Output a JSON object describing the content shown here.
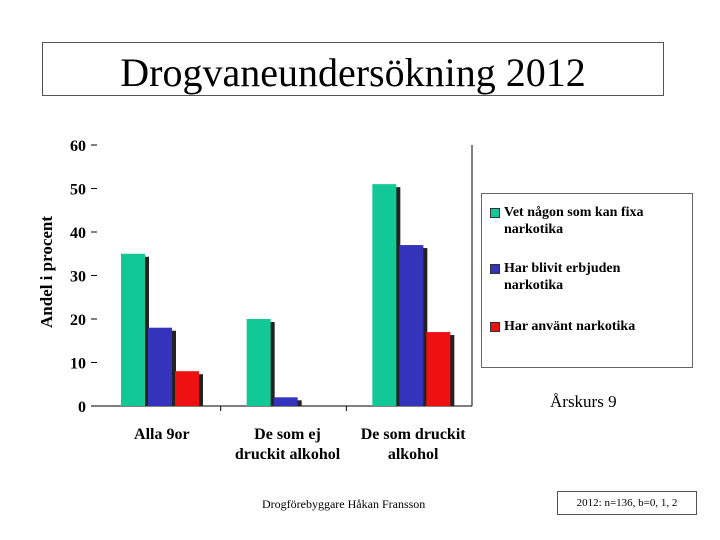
{
  "slide": {
    "title": "Drogvaneundersökning 2012",
    "footer_left": "Drogförebyggare Håkan Fransson",
    "footer_right": "2012: n=136, b=0, 1, 2",
    "grade_label": "Årskurs 9"
  },
  "chart_data": {
    "type": "bar",
    "title": "",
    "xlabel": "",
    "ylabel": "Andel i procent",
    "ylim": [
      0,
      60
    ],
    "yticks": [
      "0",
      "10",
      "20",
      "30",
      "40",
      "50",
      "60"
    ],
    "categories": [
      "Alla 9or",
      "De som ej druckit alkohol",
      "De som druckit alkohol"
    ],
    "category_lines": [
      [
        "Alla 9or"
      ],
      [
        "De som ej",
        "druckit alkohol"
      ],
      [
        "De som druckit",
        "alkohol"
      ]
    ],
    "series": [
      {
        "name": "Vet någon som kan fixa narkotika",
        "values": [
          35,
          20,
          51
        ],
        "color": "#12c897"
      },
      {
        "name": "Har blivit erbjuden narkotika",
        "values": [
          18,
          2,
          37
        ],
        "color": "#3333bb"
      },
      {
        "name": "Har använt narkotika",
        "values": [
          8,
          0,
          17
        ],
        "color": "#ee1111"
      }
    ],
    "legend_placement": "right",
    "grid": false
  }
}
